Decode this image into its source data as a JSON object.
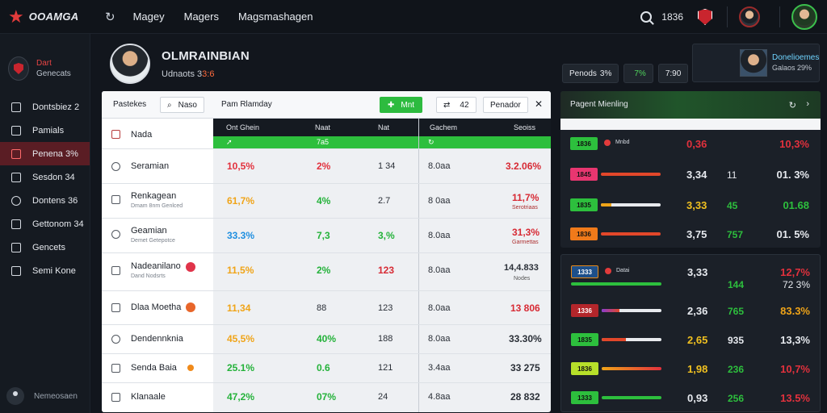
{
  "app": {
    "brand": "OOAMGA"
  },
  "topbar": {
    "nav": [
      "Magey",
      "Magers",
      "Magsmashagen"
    ],
    "count": "1836"
  },
  "sidebar": {
    "profile_line1": "Dart",
    "profile_line2": "Genecats",
    "items": [
      {
        "label": "Dontsbiez 2",
        "active": false
      },
      {
        "label": "Pamials",
        "active": false
      },
      {
        "label": "Penena 3%",
        "active": true
      },
      {
        "label": "Sesdon 34",
        "active": false
      },
      {
        "label": "Dontens 36",
        "active": false
      },
      {
        "label": "Gettonom 34",
        "active": false
      },
      {
        "label": "Gencets",
        "active": false
      },
      {
        "label": "Semi Kone",
        "active": false
      }
    ],
    "footer": "Nemeosaen"
  },
  "header": {
    "name": "OLMRAINBIAN",
    "sub_prefix": "Udnaots 3",
    "sub_highlight": "3:6"
  },
  "chips": [
    {
      "label": "Penods",
      "value": "3%"
    },
    {
      "label": "",
      "value": "7%"
    },
    {
      "label": "7:90",
      "value": ""
    }
  ],
  "profile_card": {
    "title": "Donelioemes",
    "subtitle": "Galaos 29%"
  },
  "table": {
    "toolbar": {
      "tab": "Pastekes",
      "search_label": "Naso",
      "title": "Pam Rlamday",
      "green_button": "Mnt",
      "filter_label": "42",
      "right_label": "Penador"
    },
    "columns": [
      "Ont Ghein",
      "Naat",
      "Nat",
      "Gachem",
      "Seoiss"
    ],
    "green_row": [
      "",
      "7a5",
      "",
      ""
    ],
    "rows": [
      {
        "name": "Nada",
        "sub": "",
        "c1": "",
        "c2": "",
        "c3": "",
        "c4": "",
        "c5": "",
        "sub5": ""
      },
      {
        "name": "Seramian",
        "sub": "",
        "c1": "10,5%",
        "c2": "2%",
        "c3": "1 34",
        "c4": "8.0aa",
        "c5": "3.2.06%",
        "sub5": ""
      },
      {
        "name": "Renkagean",
        "sub": "Dmam 8nm Genlced",
        "c1": "61,7%",
        "c2": "4%",
        "c3": "2.7",
        "c4": "8 0aa",
        "c5": "11,7%",
        "sub5": "Serotriaas"
      },
      {
        "name": "Geamian",
        "sub": "Demet Getepotce",
        "c1": "33.3%",
        "c2": "7,3",
        "c3": "3,%",
        "c4": "8.0aa",
        "c5": "31,3%",
        "sub5": "Garmettas"
      },
      {
        "name": "Nadeanilano",
        "sub": "Dand Nodsrts",
        "c1": "11,5%",
        "c2": "2%",
        "c3": "123",
        "c4": "8.0aa",
        "c5": "14,4.833",
        "sub5": "Nodes"
      },
      {
        "name": "Dlaa Moetha",
        "sub": "",
        "c1": "11,34",
        "c2": "88",
        "c3": "123",
        "c4": "8.0aa",
        "c5": "13 806",
        "sub5": ""
      },
      {
        "name": "Dendennknia",
        "sub": "",
        "c1": "45,5%",
        "c2": "40%",
        "c3": "188",
        "c4": "8.0aa",
        "c5": "33.30%",
        "sub5": ""
      },
      {
        "name": "Senda Baia",
        "sub": "",
        "c1": "25.1%",
        "c2": "0.6",
        "c3": "121",
        "c4": "3.4aa",
        "c5": "33 275",
        "sub5": ""
      },
      {
        "name": "Klanaale",
        "sub": "",
        "c1": "47,2%",
        "c2": "07%",
        "c3": "24",
        "c4": "4.8aa",
        "c5": "28 832",
        "sub5": ""
      }
    ]
  },
  "right_panel": {
    "title": "Pagent Mienling",
    "rows_top": [
      {
        "pill": "1836",
        "label": "Mnbd",
        "v1": "0,36",
        "v2": "",
        "v3": "10,3%"
      },
      {
        "pill": "1845",
        "label": "",
        "v1": "3,34",
        "v2": "11",
        "v3": "01. 3%"
      },
      {
        "pill": "1835",
        "label": "",
        "v1": "3,33",
        "v2": "45",
        "v3": "01.68"
      },
      {
        "pill": "1836",
        "label": "",
        "v1": "3,75",
        "v2": "757",
        "v3": "01. 5%"
      }
    ],
    "rows_bottom": [
      {
        "pill": "1333",
        "label": "Datai",
        "v1": "3,33",
        "v2": "144",
        "v3": "12,7%",
        "v3b": "72 3%"
      },
      {
        "pill": "1336",
        "label": "",
        "v1": "2,36",
        "v2": "765",
        "v3": "83.3%",
        "v3b": ""
      },
      {
        "pill": "1835",
        "label": "",
        "v1": "2,65",
        "v2": "935",
        "v3": "13,3%",
        "v3b": ""
      },
      {
        "pill": "1836",
        "label": "",
        "v1": "1,98",
        "v2": "236",
        "v3": "10,7%",
        "v3b": ""
      },
      {
        "pill": "1333",
        "label": "",
        "v1": "0,93",
        "v2": "256",
        "v3": "13.5%",
        "v3b": ""
      }
    ]
  },
  "colors": {
    "accent_red": "#e23b3b",
    "accent_green": "#2dbf3d",
    "active_sidebar": "#5a1d24"
  }
}
